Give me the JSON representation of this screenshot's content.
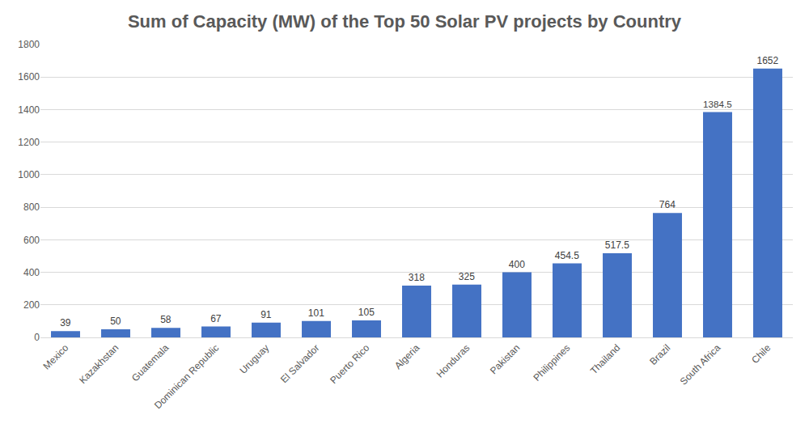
{
  "chart_data": {
    "type": "bar",
    "title": "Sum of Capacity (MW) of the Top 50 Solar PV projects by Country",
    "categories": [
      "Mexico",
      "Kazakhstan",
      "Guatemala",
      "Dominican Republic",
      "Uruguay",
      "El Salvador",
      "Puerto Rico",
      "Algeria",
      "Honduras",
      "Pakistan",
      "Philippines",
      "Thailand",
      "Brazil",
      "South Africa",
      "Chile"
    ],
    "values": [
      39,
      50,
      58,
      67,
      91,
      101,
      105,
      318,
      325,
      400,
      454.5,
      517.5,
      764,
      1384.5,
      1652
    ],
    "color": "#4472c4",
    "ylim": [
      0,
      1800
    ],
    "yticks": [
      0,
      200,
      400,
      600,
      800,
      1000,
      1200,
      1400,
      1600,
      1800
    ],
    "grid": true,
    "data_labels": true
  }
}
